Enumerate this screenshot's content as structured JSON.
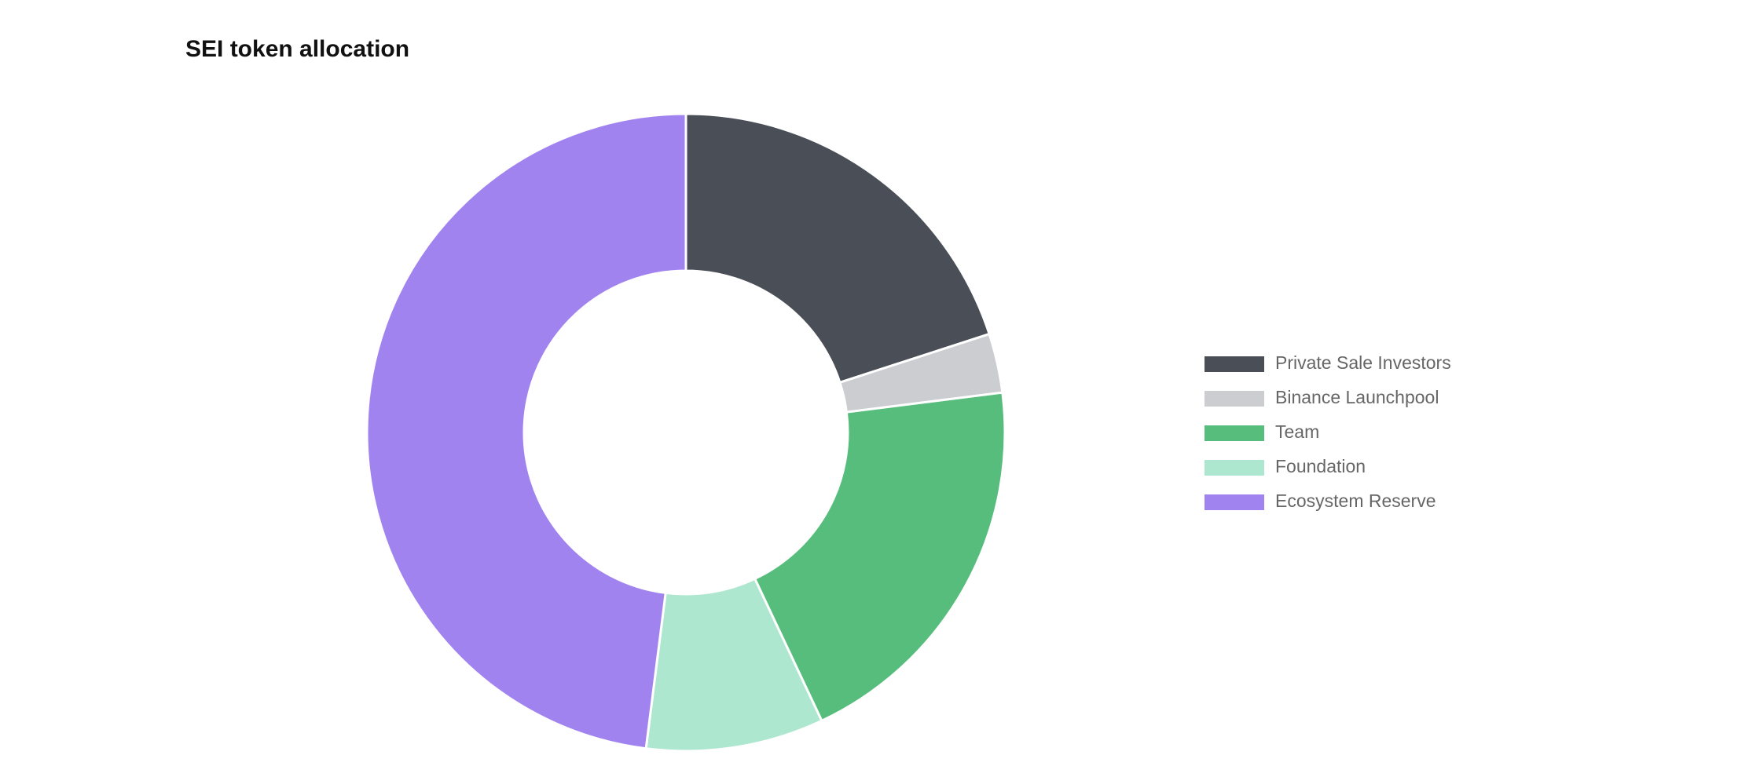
{
  "chart_data": {
    "type": "doughnut",
    "title": "SEI token allocation",
    "categories": [
      "Private Sale Investors",
      "Binance Launchpool",
      "Team",
      "Foundation",
      "Ecosystem Reserve"
    ],
    "values": [
      20,
      3,
      20,
      9,
      48
    ],
    "colors": [
      "#4a4e57",
      "#cbcdd1",
      "#57bd7c",
      "#aee7cf",
      "#a183ef"
    ]
  }
}
